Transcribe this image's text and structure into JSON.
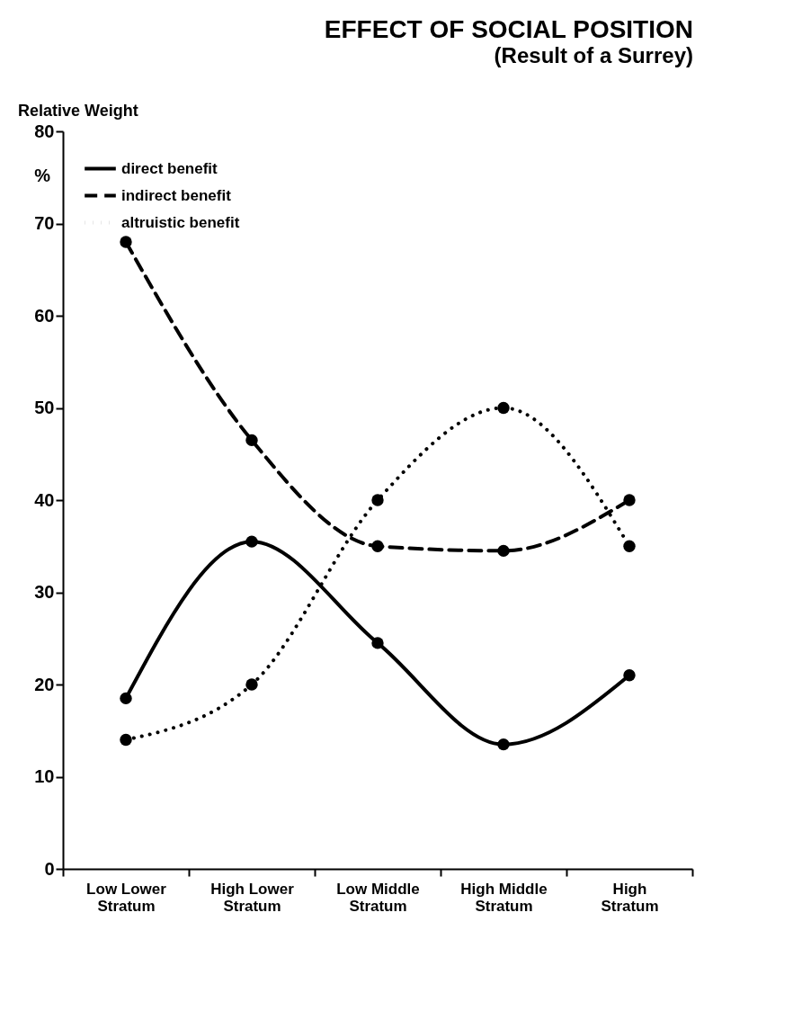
{
  "chart_data": {
    "type": "line",
    "title": "EFFECT OF SOCIAL POSITION",
    "subtitle": "(Result of a Surrey)",
    "ylabel": "Relative Weight",
    "annotations": [
      "%"
    ],
    "categories": [
      "Low Lower Stratum",
      "High Lower Stratum",
      "Low Middle Stratum",
      "High Middle Stratum",
      "High Stratum"
    ],
    "series": [
      {
        "name": "direct benefit",
        "color": "#000000",
        "line_style": "solid",
        "values": [
          18.5,
          35.5,
          24.5,
          13.5,
          21
        ]
      },
      {
        "name": "indirect benefit",
        "color": "#000000",
        "line_style": "dashed",
        "values": [
          68,
          46.5,
          35,
          34.5,
          40
        ]
      },
      {
        "name": "altruistic benefit",
        "color": "#000000",
        "line_style": "dotted",
        "values": [
          14,
          20,
          40,
          50,
          35
        ]
      }
    ],
    "ylim": [
      0,
      80
    ],
    "yticks": [
      0,
      10,
      20,
      30,
      40,
      50,
      60,
      70,
      80
    ],
    "grid": false,
    "legend": "top left",
    "marker": "circle"
  }
}
